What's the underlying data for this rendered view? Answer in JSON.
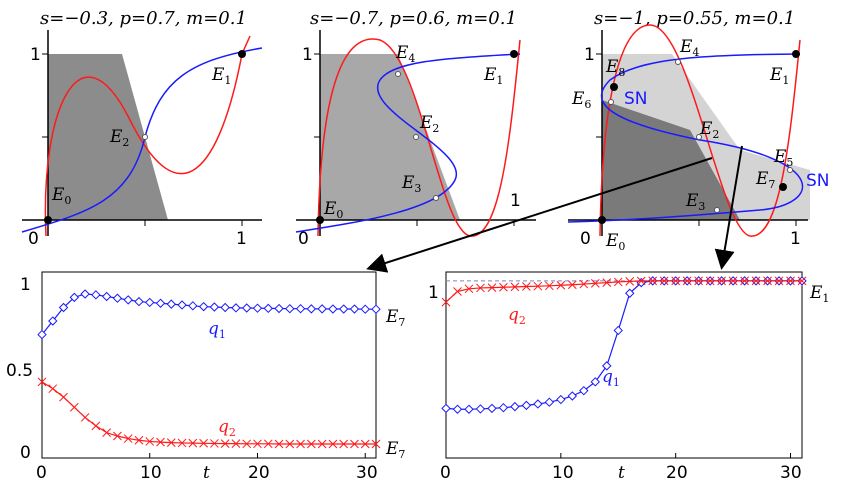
{
  "chart_data": [
    {
      "type": "phase_portrait",
      "title": "s=−0.3, p=0.7, m=0.1",
      "x_ticks": [
        "0",
        "1"
      ],
      "y_ticks": [
        "1"
      ],
      "points": [
        {
          "label": "E",
          "sub": "0",
          "x": 0,
          "y": 0
        },
        {
          "label": "E",
          "sub": "1",
          "x": 1,
          "y": 1
        },
        {
          "label": "E",
          "sub": "2",
          "x": 0.5,
          "y": 0.5
        }
      ]
    },
    {
      "type": "phase_portrait",
      "title": "s=−0.7, p=0.6, m=0.1",
      "x_ticks": [
        "0",
        "1"
      ],
      "y_ticks": [
        "1"
      ],
      "points": [
        {
          "label": "E",
          "sub": "0",
          "x": 0,
          "y": 0
        },
        {
          "label": "E",
          "sub": "1",
          "x": 1,
          "y": 1
        },
        {
          "label": "E",
          "sub": "2",
          "x": 0.6,
          "y": 0.5
        },
        {
          "label": "E",
          "sub": "3",
          "x": 0.72,
          "y": 0.12
        },
        {
          "label": "E",
          "sub": "4",
          "x": 0.42,
          "y": 0.93
        }
      ]
    },
    {
      "type": "phase_portrait",
      "title": "s=−1, p=0.55, m=0.1",
      "x_ticks": [
        "0",
        "1"
      ],
      "y_ticks": [
        "1"
      ],
      "annotations": [
        "SN",
        "SN"
      ],
      "points": [
        {
          "label": "E",
          "sub": "0",
          "x": 0,
          "y": 0
        },
        {
          "label": "E",
          "sub": "1",
          "x": 1,
          "y": 1
        },
        {
          "label": "E",
          "sub": "2",
          "x": 0.48,
          "y": 0.5
        },
        {
          "label": "E",
          "sub": "3",
          "x": 0.6,
          "y": 0.05
        },
        {
          "label": "E",
          "sub": "4",
          "x": 0.42,
          "y": 0.93
        },
        {
          "label": "E",
          "sub": "5",
          "x": 0.98,
          "y": 0.3
        },
        {
          "label": "E",
          "sub": "6",
          "x": 0.03,
          "y": 0.7
        },
        {
          "label": "E",
          "sub": "7",
          "x": 0.93,
          "y": 0.19
        },
        {
          "label": "E",
          "sub": "8",
          "x": 0.05,
          "y": 0.8
        }
      ]
    },
    {
      "type": "line",
      "xlabel": "t",
      "x_ticks": [
        "0",
        "10",
        "20",
        "30"
      ],
      "y_ticks": [
        "0",
        "0.5",
        "1"
      ],
      "xlim": [
        0,
        31
      ],
      "ylim": [
        -0.05,
        1.05
      ],
      "right_labels": [
        {
          "label": "E",
          "sub": "7",
          "y": 0.83
        },
        {
          "label": "E",
          "sub": "7",
          "y": 0.03
        }
      ],
      "series": [
        {
          "name": "q",
          "sub": "1",
          "color": "#1a1aff",
          "marker": "diamond",
          "x": [
            0,
            1,
            2,
            3,
            4,
            5,
            6,
            7,
            8,
            9,
            10,
            11,
            12,
            13,
            14,
            15,
            16,
            17,
            18,
            19,
            20,
            21,
            22,
            23,
            24,
            25,
            26,
            27,
            28,
            29,
            30,
            31
          ],
          "values": [
            0.68,
            0.76,
            0.84,
            0.9,
            0.92,
            0.915,
            0.905,
            0.895,
            0.885,
            0.875,
            0.87,
            0.865,
            0.86,
            0.855,
            0.85,
            0.845,
            0.843,
            0.84,
            0.838,
            0.837,
            0.836,
            0.835,
            0.834,
            0.833,
            0.833,
            0.832,
            0.832,
            0.831,
            0.831,
            0.831,
            0.83,
            0.83
          ]
        },
        {
          "name": "q",
          "sub": "2",
          "color": "#ff1a1a",
          "marker": "cross",
          "x": [
            0,
            1,
            2,
            3,
            4,
            5,
            6,
            7,
            8,
            9,
            10,
            11,
            12,
            13,
            14,
            15,
            16,
            17,
            18,
            19,
            20,
            21,
            22,
            23,
            24,
            25,
            26,
            27,
            28,
            29,
            30,
            31
          ],
          "values": [
            0.4,
            0.36,
            0.31,
            0.25,
            0.19,
            0.14,
            0.1,
            0.08,
            0.065,
            0.055,
            0.048,
            0.044,
            0.041,
            0.039,
            0.038,
            0.037,
            0.036,
            0.035,
            0.035,
            0.034,
            0.034,
            0.034,
            0.033,
            0.033,
            0.033,
            0.033,
            0.033,
            0.033,
            0.033,
            0.033,
            0.033,
            0.033
          ]
        }
      ]
    },
    {
      "type": "line",
      "xlabel": "t",
      "x_ticks": [
        "0",
        "10",
        "20",
        "30"
      ],
      "y_ticks": [
        "1"
      ],
      "xlim": [
        0,
        31
      ],
      "ylim": [
        0,
        1.05
      ],
      "right_labels": [
        {
          "label": "E",
          "sub": "1",
          "y": 1.0
        }
      ],
      "reference_line": 1.0,
      "series": [
        {
          "name": "q",
          "sub": "1",
          "color": "#1a1aff",
          "marker": "diamond",
          "x": [
            0,
            1,
            2,
            3,
            4,
            5,
            6,
            7,
            8,
            9,
            10,
            11,
            12,
            13,
            14,
            15,
            16,
            17,
            18,
            19,
            20,
            21,
            22,
            23,
            24,
            25,
            26,
            27,
            28,
            29,
            30,
            31
          ],
          "values": [
            0.28,
            0.275,
            0.275,
            0.277,
            0.28,
            0.284,
            0.29,
            0.297,
            0.305,
            0.315,
            0.33,
            0.35,
            0.38,
            0.43,
            0.52,
            0.72,
            0.93,
            0.99,
            1.0,
            1.0,
            1.0,
            1.0,
            1.0,
            1.0,
            1.0,
            1.0,
            1.0,
            1.0,
            1.0,
            1.0,
            1.0,
            1.0
          ]
        },
        {
          "name": "q",
          "sub": "2",
          "color": "#ff1a1a",
          "marker": "cross",
          "x": [
            0,
            1,
            2,
            3,
            4,
            5,
            6,
            7,
            8,
            9,
            10,
            11,
            12,
            13,
            14,
            15,
            16,
            17,
            18,
            19,
            20,
            21,
            22,
            23,
            24,
            25,
            26,
            27,
            28,
            29,
            30,
            31
          ],
          "values": [
            0.88,
            0.94,
            0.955,
            0.96,
            0.962,
            0.964,
            0.966,
            0.968,
            0.97,
            0.972,
            0.975,
            0.978,
            0.982,
            0.986,
            0.99,
            0.994,
            0.997,
            0.999,
            1.0,
            1.0,
            1.0,
            1.0,
            1.0,
            1.0,
            1.0,
            1.0,
            1.0,
            1.0,
            1.0,
            1.0,
            1.0,
            1.0
          ]
        }
      ]
    }
  ]
}
